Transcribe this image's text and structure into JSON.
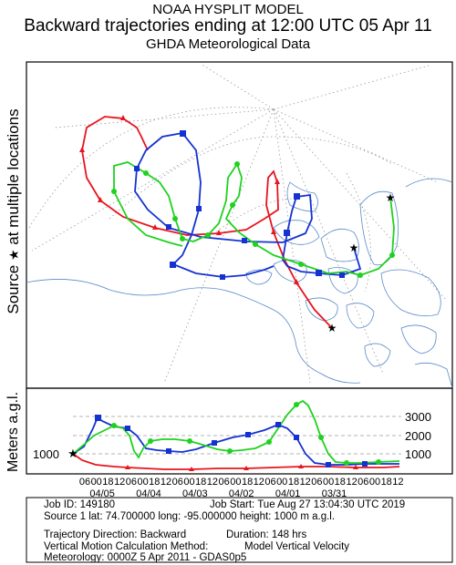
{
  "header": {
    "title": "NOAA HYSPLIT MODEL",
    "subtitle": "Backward trajectories ending at 12:00 UTC 05 Apr 11",
    "data_source": "GHDA Meteorological Data"
  },
  "map_panel": {
    "ylabel_prefix": "Source",
    "ylabel_star": "★",
    "ylabel_suffix": "at multiple locations"
  },
  "height_panel": {
    "ylabel": "Meters a.g.l.",
    "start_height_label": "1000",
    "height_ticks": [
      "3000",
      "2000",
      "1000"
    ],
    "hour_ticks": [
      "06",
      "00",
      "18",
      "12",
      "06",
      "00",
      "18",
      "12",
      "06",
      "00",
      "18",
      "12",
      "06",
      "00",
      "18",
      "12",
      "06",
      "00",
      "18",
      "12",
      "06",
      "00",
      "18",
      "12",
      "06",
      "00",
      "18",
      "12"
    ],
    "date_labels": [
      "04/05",
      "04/04",
      "04/03",
      "04/02",
      "04/01",
      "03/31"
    ]
  },
  "series_colors": {
    "red": "#e8141e",
    "blue": "#1432d2",
    "green": "#1ed21e",
    "coast": "#5a8ac8",
    "grid": "#9a9a9a"
  },
  "info": {
    "job_id": "Job ID: 149180",
    "job_start": "Job Start: Tue Aug 27 13:04:30 UTC 2019",
    "source": "Source 1     lat: 74.700000    long: -95.000000    height: 1000 m a.g.l.",
    "direction": "Trajectory Direction: Backward",
    "duration": "Duration: 148 hrs",
    "vertical_method": "Vertical Motion Calculation Method:",
    "vertical_model": "Model Vertical Velocity",
    "meteorology": "Meteorology: 0000Z  5 Apr 2011 - GDAS0p5"
  }
}
